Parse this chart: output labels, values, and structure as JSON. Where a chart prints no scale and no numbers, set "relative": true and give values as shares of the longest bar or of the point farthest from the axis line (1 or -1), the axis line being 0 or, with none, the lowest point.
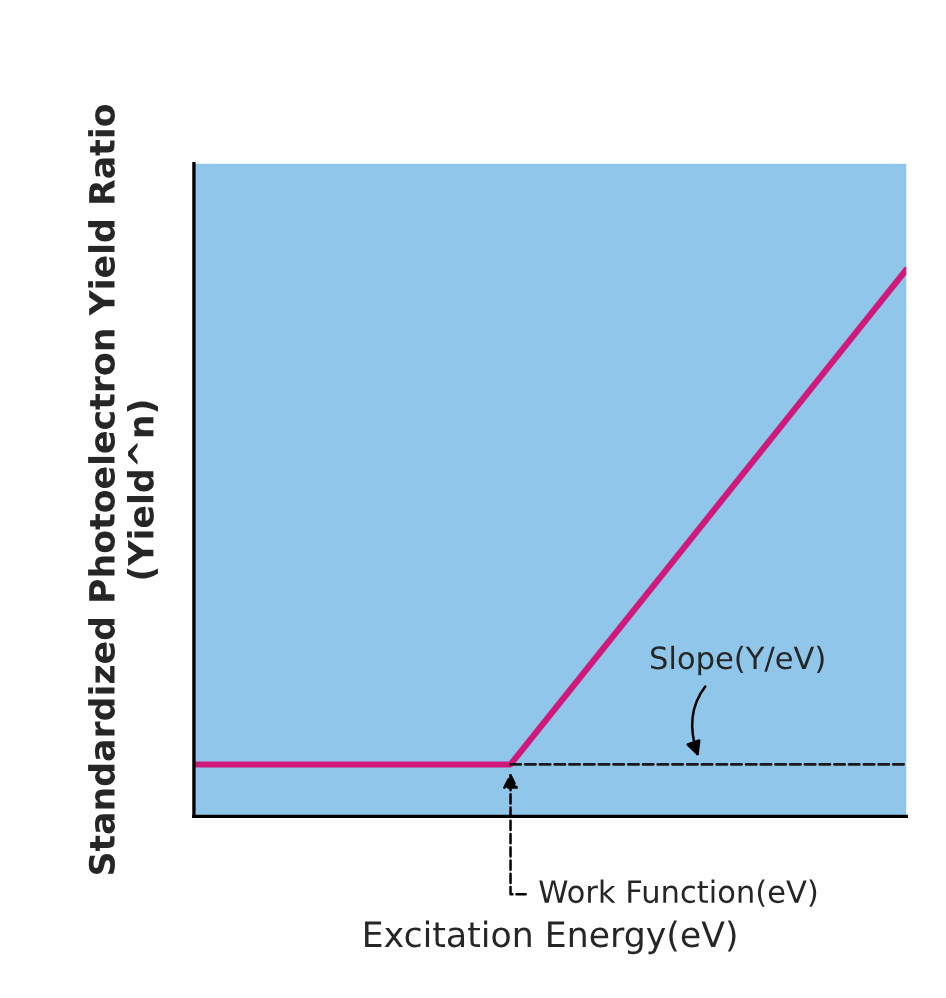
{
  "chart_data": {
    "type": "line",
    "relative": true,
    "xlabel": "Excitation Energy(eV)",
    "ylabel": "Standardized Photoelectron Yield Ratio\n(Yield^n)",
    "categories": [
      null,
      null,
      null,
      null,
      null,
      null,
      null,
      null,
      null,
      null
    ],
    "series": [
      {
        "color": "#d0197a",
        "line_style": "solid",
        "values": [
          0.095,
          0.095,
          0.095,
          0.095,
          0.095,
          0.276,
          0.457,
          0.638,
          0.819,
          1.0
        ]
      },
      {
        "color": "#1a1a1a",
        "line_style": "dashed",
        "values": [
          null,
          null,
          null,
          null,
          0.095,
          0.095,
          0.095,
          0.095,
          0.095,
          0.095
        ]
      }
    ],
    "annotations": [
      "Slope(Y/eV)",
      "Work Function(eV)"
    ],
    "grid": false,
    "legend": false,
    "marker": "none"
  }
}
